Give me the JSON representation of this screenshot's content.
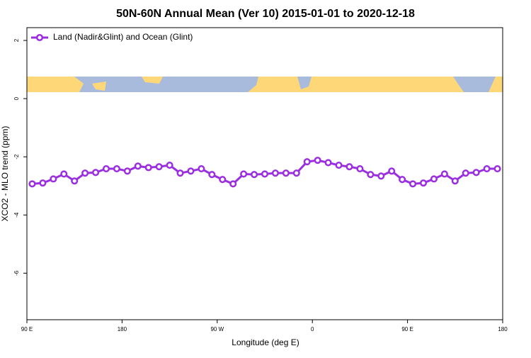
{
  "chart_data": {
    "type": "line",
    "title": "50N-60N Annual Mean (Ver 10)   2015-01-01 to 2020-12-18",
    "x_label": "Longitude (deg E)",
    "y_label": "XCO2 - MLO trend (ppm)",
    "xlim": [
      -270,
      180
    ],
    "xticks": [
      {
        "value": -270,
        "label": "90 E"
      },
      {
        "value": -180,
        "label": "180"
      },
      {
        "value": -90,
        "label": "90 W"
      },
      0,
      {
        "value": 90,
        "label": "90 E"
      },
      180
    ],
    "ylim": [
      -7.6,
      2.44
    ],
    "yticks": [
      2,
      0,
      -2,
      -4,
      -6
    ],
    "legend": "top-left",
    "x": [
      -265,
      -255,
      -245,
      -235,
      -225,
      -215,
      -205,
      -195,
      -185,
      -175,
      -165,
      -155,
      -145,
      -135,
      -125,
      -115,
      -105,
      -95,
      -85,
      -75,
      -65,
      -55,
      -45,
      -35,
      -25,
      -15,
      -5,
      5,
      15,
      25,
      35,
      45,
      55,
      65,
      75,
      85,
      95,
      105,
      115,
      125,
      135,
      145,
      155,
      165,
      175
    ],
    "series": [
      {
        "name": "Land (Nadir&Glint) and Ocean (Glint)",
        "color": "#9b2fe0",
        "values": [
          -2.93,
          -2.9,
          -2.76,
          -2.59,
          -2.83,
          -2.56,
          -2.54,
          -2.41,
          -2.41,
          -2.49,
          -2.32,
          -2.37,
          -2.34,
          -2.29,
          -2.56,
          -2.49,
          -2.41,
          -2.61,
          -2.78,
          -2.93,
          -2.59,
          -2.61,
          -2.59,
          -2.56,
          -2.56,
          -2.56,
          -2.17,
          -2.12,
          -2.2,
          -2.29,
          -2.34,
          -2.41,
          -2.61,
          -2.66,
          -2.49,
          -2.78,
          -2.93,
          -2.9,
          -2.76,
          -2.59,
          -2.83,
          -2.56,
          -2.54,
          -2.41,
          -2.41
        ]
      }
    ]
  }
}
